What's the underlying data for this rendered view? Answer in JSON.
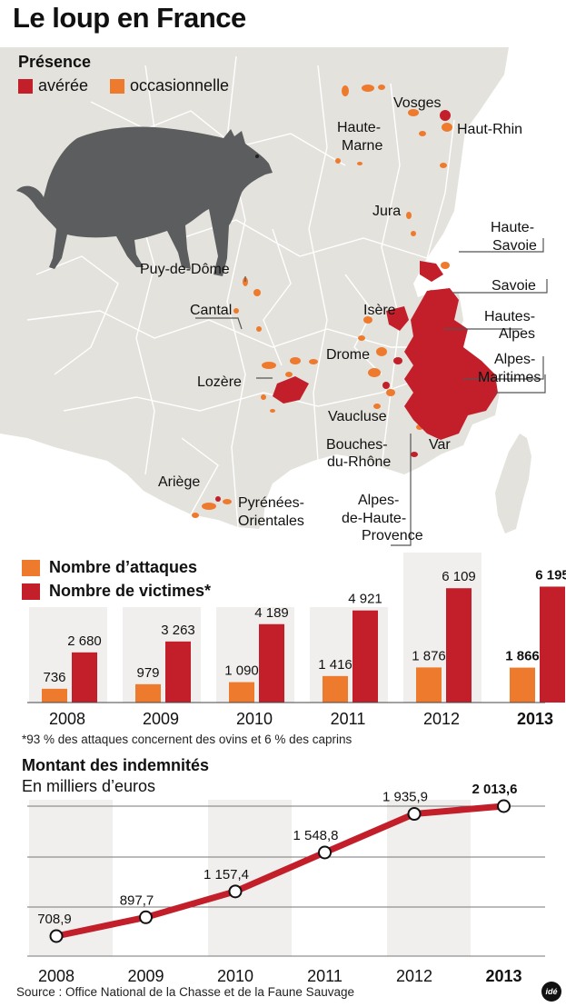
{
  "title": "Le loup en France",
  "presence": {
    "title": "Présence",
    "legend": [
      {
        "label": "avérée",
        "color": "#c21f2b"
      },
      {
        "label": "occasionnelle",
        "color": "#ee7a2d"
      }
    ]
  },
  "map_labels": {
    "vosges": "Vosges",
    "haute_marne_1": "Haute-",
    "haute_marne_2": "Marne",
    "haut_rhin": "Haut-Rhin",
    "jura": "Jura",
    "haute_savoie_1": "Haute-",
    "haute_savoie_2": "Savoie",
    "puy_de_dome": "Puy-de-Dôme",
    "cantal": "Cantal",
    "savoie": "Savoie",
    "isere": "Isère",
    "hautes_alpes_1": "Hautes-",
    "hautes_alpes_2": "Alpes",
    "drome": "Drome",
    "alpes_maritimes_1": "Alpes-",
    "alpes_maritimes_2": "Maritimes",
    "lozere": "Lozère",
    "vaucluse": "Vaucluse",
    "var": "Var",
    "bouches_1": "Bouches-",
    "bouches_2": "du-Rhône",
    "ariege": "Ariège",
    "pyrenees_1": "Pyrénées-",
    "pyrenees_2": "Orientales",
    "ahp_1": "Alpes-",
    "ahp_2": "de-Haute-",
    "ahp_3": "Provence"
  },
  "colors": {
    "attacks": "#ee7a2d",
    "victims": "#c21f2b",
    "land": "#e4e2dc",
    "border": "#ffffff",
    "sea": "#ffffff",
    "column_shade": "#f0efed",
    "line": "#c21f2b",
    "wolf": "#5c5d5f"
  },
  "bar_legend": {
    "attacks": "Nombre d’attaques",
    "victims": "Nombre de victimes*"
  },
  "chart_data": [
    {
      "type": "bar",
      "categories": [
        "2008",
        "2009",
        "2010",
        "2011",
        "2012",
        "2013"
      ],
      "series": [
        {
          "name": "Nombre d’attaques",
          "values": [
            736,
            979,
            1090,
            1416,
            1876,
            1866
          ],
          "labels": [
            "736",
            "979",
            "1 090",
            "1 416",
            "1 876",
            "1 866"
          ]
        },
        {
          "name": "Nombre de victimes*",
          "values": [
            2680,
            3263,
            4189,
            4921,
            6109,
            6195
          ],
          "labels": [
            "2 680",
            "3 263",
            "4 189",
            "4 921",
            "6 109",
            "6 195"
          ]
        }
      ],
      "footnote": "*93 % des attaques concernent des ovins et 6 % des caprins"
    },
    {
      "type": "line",
      "title": "Montant des indemnités",
      "subtitle": "En milliers d’euros",
      "x": [
        "2008",
        "2009",
        "2010",
        "2011",
        "2012",
        "2013"
      ],
      "values": [
        708.9,
        897.7,
        1157.4,
        1548.8,
        1935.9,
        2013.6
      ],
      "labels": [
        "708,9",
        "897,7",
        "1 157,4",
        "1 548,8",
        "1 935,9",
        "2 013,6"
      ],
      "grid": true
    }
  ],
  "source": "Source : Office National de la Chasse et de la Faune Sauvage",
  "logo_text": "idé",
  "icons": {
    "wolf": "wolf-illustration",
    "logo": "ide-logo"
  }
}
